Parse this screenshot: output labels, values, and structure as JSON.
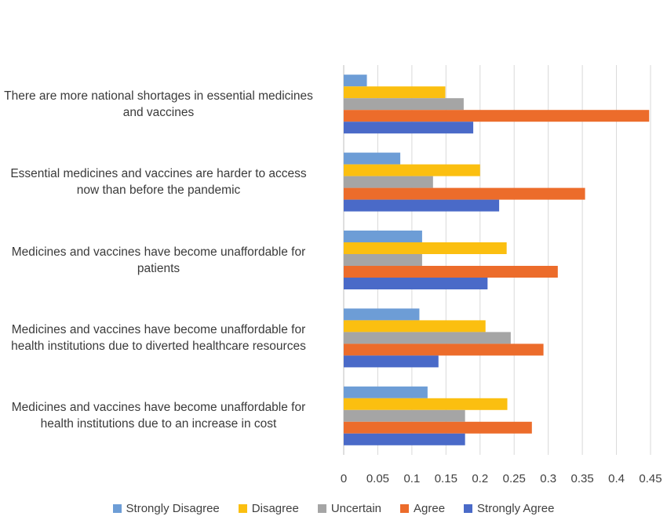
{
  "chart_data": {
    "type": "bar",
    "orientation": "horizontal",
    "title": "",
    "xlabel": "",
    "ylabel": "",
    "xlim": [
      0,
      0.45
    ],
    "x_ticks": [
      "0",
      "0.05",
      "0.1",
      "0.15",
      "0.2",
      "0.25",
      "0.3",
      "0.35",
      "0.4",
      "0.45"
    ],
    "grid": true,
    "legend_position": "bottom",
    "categories": [
      "There are more national shortages in essential medicines and vaccines",
      "Essential medicines and vaccines are harder to access now than before the pandemic",
      "Medicines and vaccines have become unaffordable for patients",
      "Medicines and vaccines have become unaffordable for health institutions due to diverted healthcare resources",
      "Medicines and vaccines have become unaffordable for health institutions due to an increase in cost"
    ],
    "category_lines": [
      [
        "There are more national shortages in essential medicines",
        "and vaccines"
      ],
      [
        "Essential medicines and vaccines are harder to access",
        "now than before the pandemic"
      ],
      [
        "Medicines and vaccines have become unaffordable for",
        "patients"
      ],
      [
        "Medicines and vaccines have become unaffordable for",
        "health institutions due to diverted healthcare resources"
      ],
      [
        "Medicines and vaccines have become unaffordable for",
        "health institutions due to an increase in cost"
      ]
    ],
    "series": [
      {
        "name": "Strongly Disagree",
        "color": "#6d9dd6",
        "values": [
          0.034,
          0.083,
          0.115,
          0.111,
          0.123
        ]
      },
      {
        "name": "Disagree",
        "color": "#fbbf10",
        "values": [
          0.149,
          0.2,
          0.239,
          0.208,
          0.24
        ]
      },
      {
        "name": "Uncertain",
        "color": "#a5a5a5",
        "values": [
          0.176,
          0.131,
          0.115,
          0.245,
          0.178
        ]
      },
      {
        "name": "Agree",
        "color": "#ec6c2b",
        "values": [
          0.448,
          0.354,
          0.314,
          0.293,
          0.276
        ]
      },
      {
        "name": "Strongly Agree",
        "color": "#4a6ac8",
        "values": [
          0.19,
          0.228,
          0.211,
          0.139,
          0.178
        ]
      }
    ]
  }
}
